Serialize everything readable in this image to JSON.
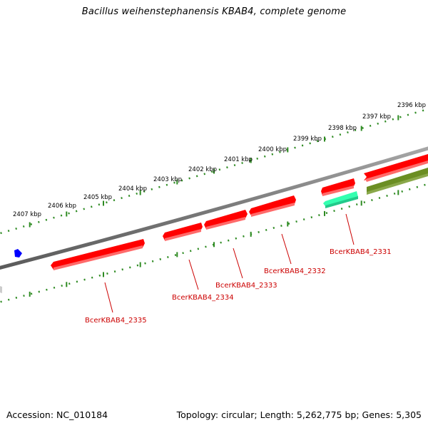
{
  "title": "Bacillus weihenstephanensis KBAB4, complete genome",
  "footer": {
    "accession": "Accession: NC_010184",
    "summary": "Topology: circular; Length: 5,262,775 bp; Genes: 5,305"
  },
  "ruler": {
    "unit": "kbp",
    "labels": [
      "2396 kbp",
      "2397 kbp",
      "2398 kbp",
      "2399 kbp",
      "2400 kbp",
      "2401 kbp",
      "2402 kbp",
      "2403 kbp",
      "2404 kbp",
      "2405 kbp",
      "2406 kbp",
      "2407 kbp"
    ]
  },
  "genes": [
    {
      "label": "BcerKBAB4_2331",
      "color": "#ff0000"
    },
    {
      "label": "BcerKBAB4_2332",
      "color": "#ff0000"
    },
    {
      "label": "BcerKBAB4_2333",
      "color": "#ff0000"
    },
    {
      "label": "BcerKBAB4_2334",
      "color": "#ff0000"
    },
    {
      "label": "BcerKBAB4_2335",
      "color": "#ff0000"
    }
  ],
  "colors": {
    "backbone": "#808080",
    "ruler": "#2e8b22",
    "gene_forward": "#ff0000",
    "gene_highlight": "#33ffb0",
    "gene_other": "#6b8e23",
    "gene_label": "#cc0000",
    "marker": "#0000ff"
  }
}
